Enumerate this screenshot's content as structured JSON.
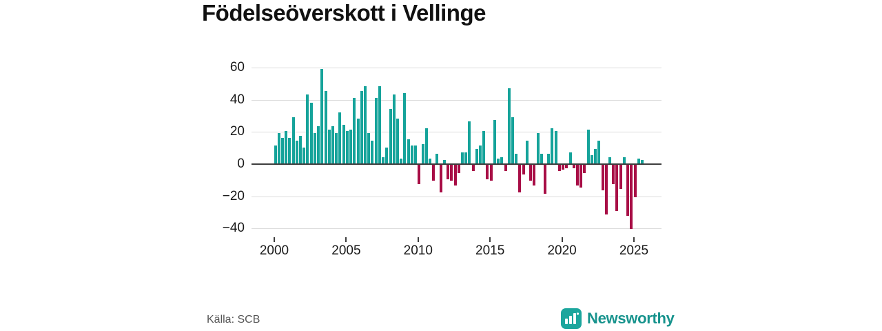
{
  "title": "Födelseöverskott i Vellinge",
  "source": "Källa: SCB",
  "brand": {
    "name": "Newsworthy",
    "icon": "bar-chart-icon",
    "icon_color": "#1CA69D",
    "text_color": "#17938D"
  },
  "chart_data": {
    "type": "bar",
    "title": "Födelseöverskott i Vellinge",
    "frequency": "quarterly",
    "x_start": "2000Q1",
    "x_end": "2025Q3",
    "values": [
      11,
      19,
      16,
      20,
      16,
      29,
      14,
      17,
      10,
      43,
      38,
      19,
      23,
      59,
      45,
      21,
      23,
      19,
      32,
      24,
      20,
      21,
      41,
      28,
      45,
      48,
      19,
      14,
      41,
      48,
      4,
      10,
      34,
      43,
      28,
      3,
      44,
      15,
      11,
      11,
      -12,
      12,
      22,
      3,
      -10,
      6,
      -17,
      2,
      -9,
      -10,
      -13,
      -5,
      7,
      7,
      26,
      -4,
      9,
      11,
      20,
      -9,
      -10,
      27,
      3,
      4,
      -4,
      47,
      29,
      6,
      -17,
      -6,
      14,
      -10,
      -13,
      19,
      6,
      -18,
      6,
      22,
      20,
      -4,
      -3,
      -2,
      7,
      -2,
      -13,
      -14,
      -5,
      21,
      5,
      9,
      14,
      -16,
      -31,
      4,
      -12,
      -29,
      -15,
      4,
      -32,
      -40,
      -20,
      3,
      2
    ],
    "yticks": [
      60,
      40,
      20,
      0,
      -20,
      -40
    ],
    "ytick_labels": [
      "60",
      "40",
      "20",
      "0",
      "−20",
      "−40"
    ],
    "xticks": [
      2000,
      2005,
      2010,
      2015,
      2020,
      2025
    ],
    "xtick_labels": [
      "2000",
      "2005",
      "2010",
      "2015",
      "2020",
      "2025"
    ],
    "ylim": [
      -45,
      62
    ],
    "grid": true,
    "legend": false,
    "colors": {
      "positive": "#15A39A",
      "negative": "#A80E46"
    }
  }
}
